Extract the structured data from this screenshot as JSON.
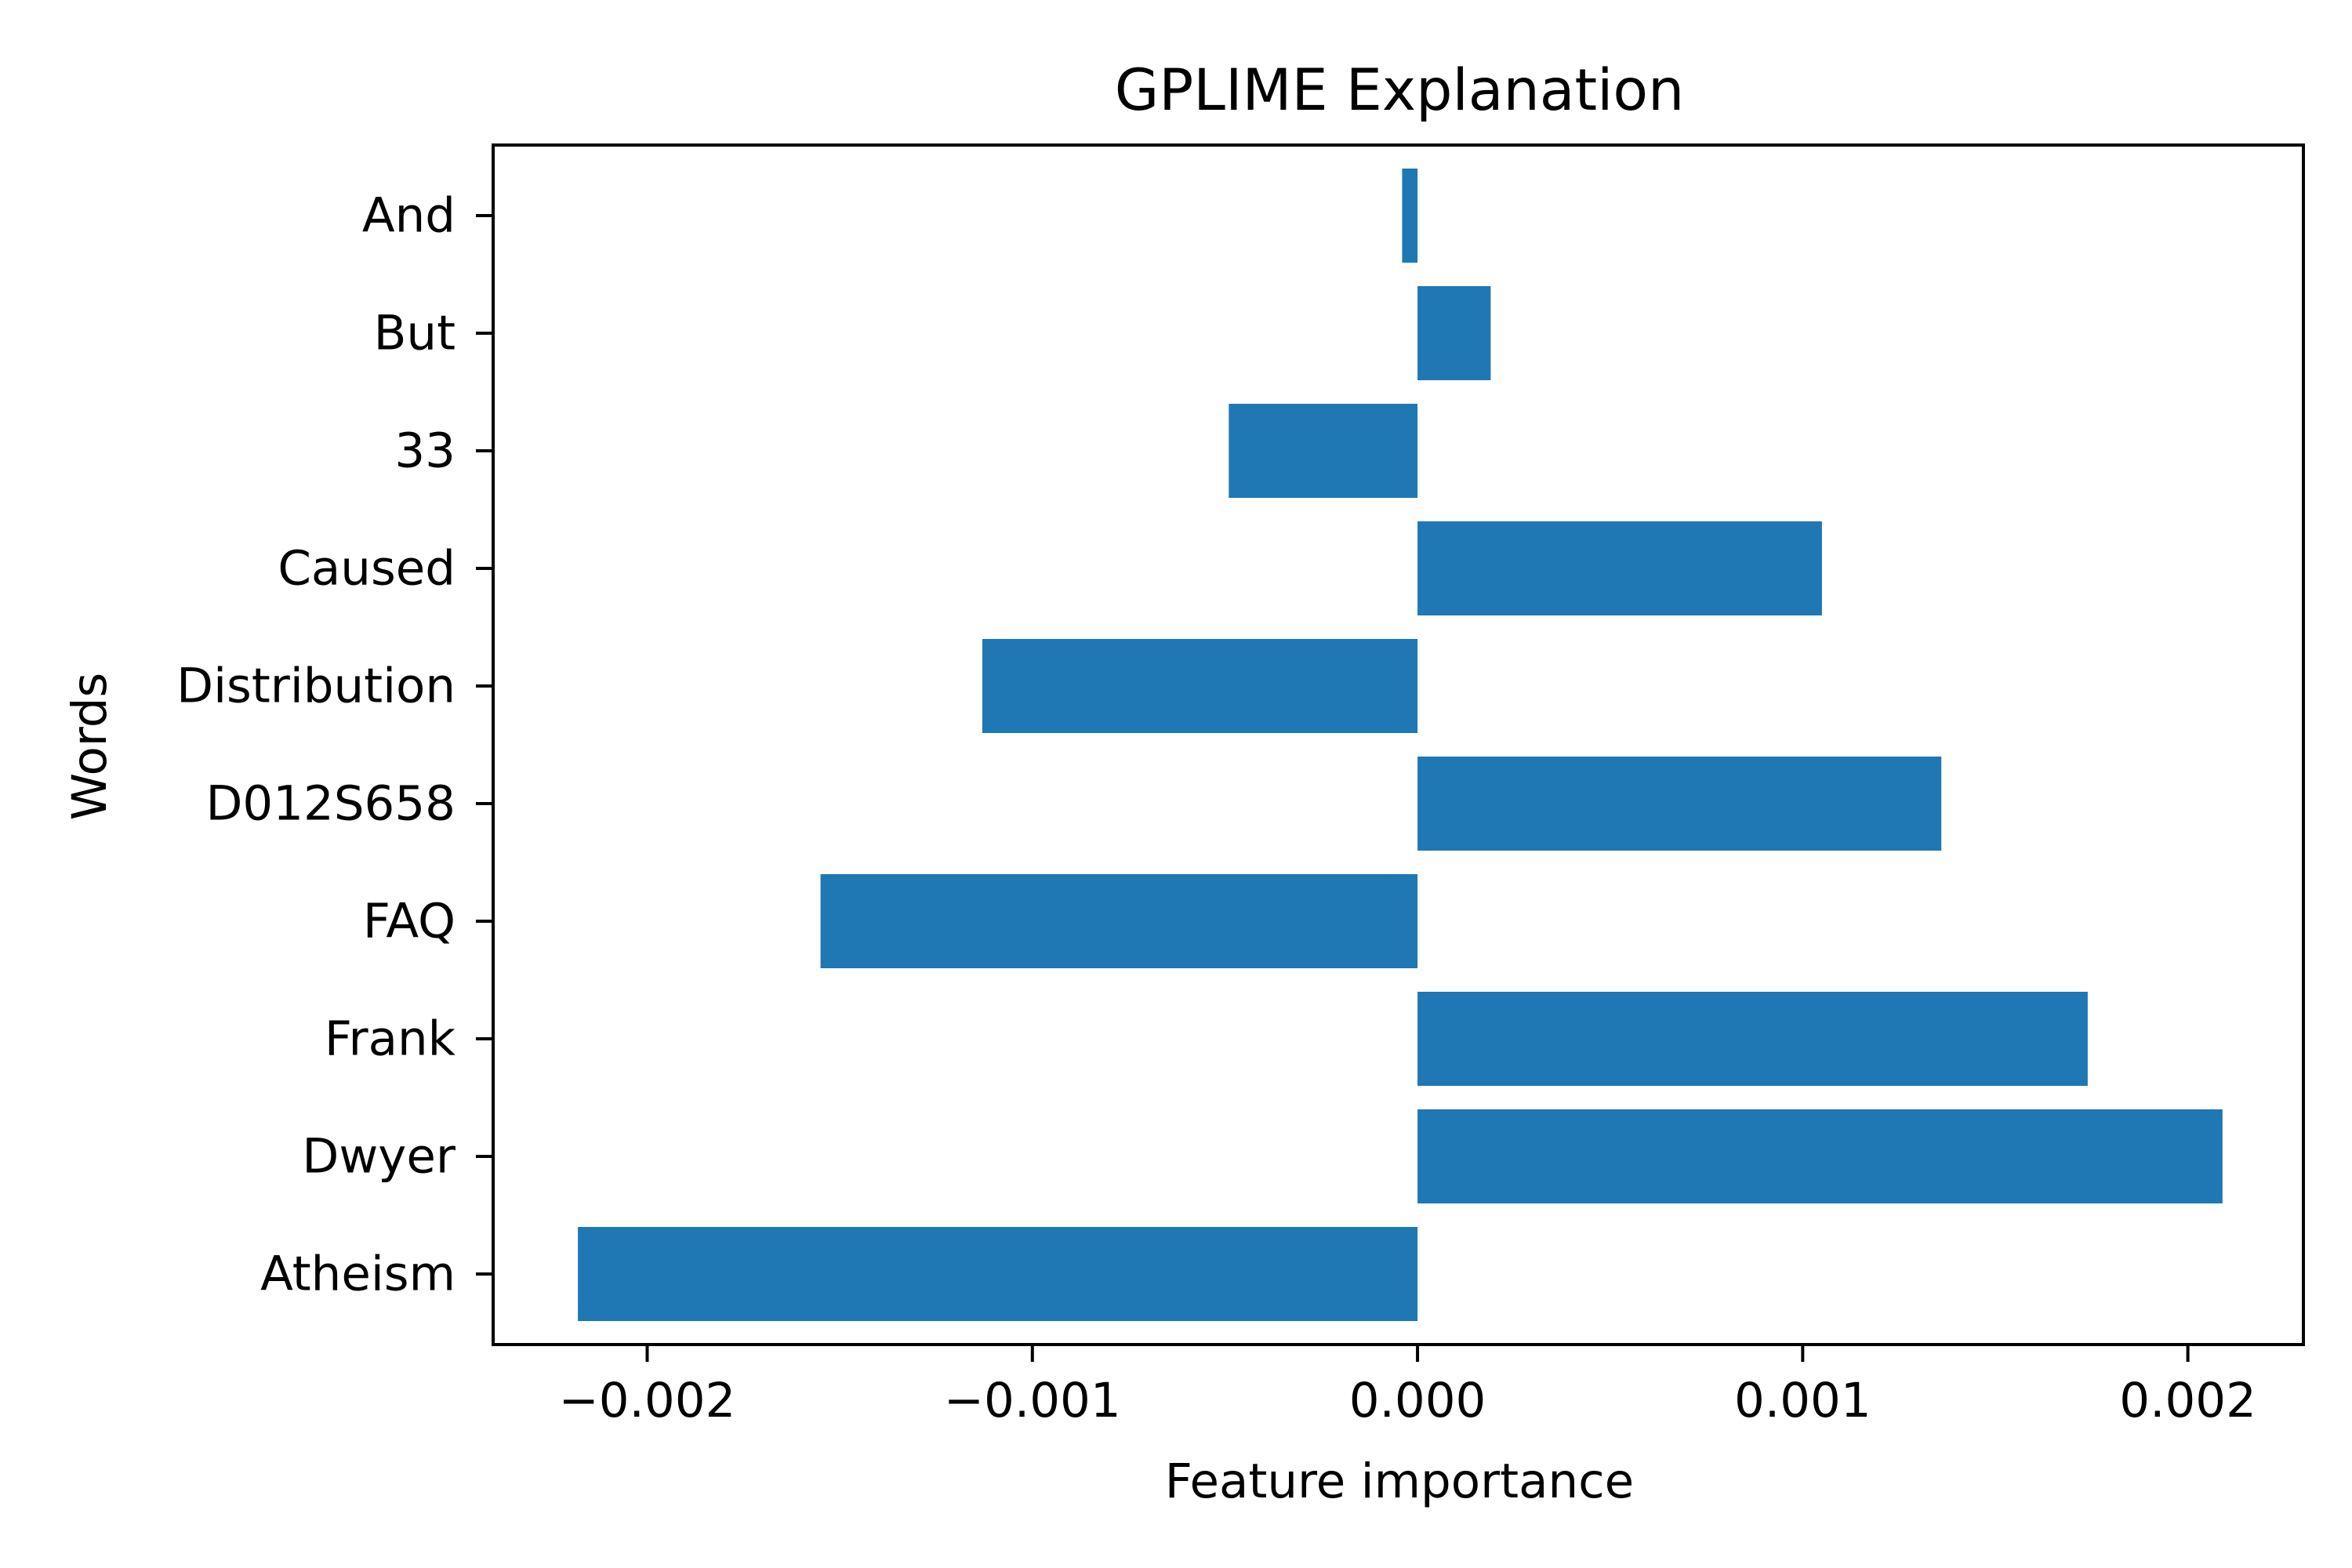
{
  "chart_data": {
    "type": "bar",
    "orientation": "horizontal",
    "title": "GPLIME Explanation",
    "xlabel": "Feature importance",
    "ylabel": "Words",
    "xlim": [
      -0.0024,
      0.0023
    ],
    "grid": false,
    "bar_color": "#1f77b4",
    "categories": [
      "Atheism",
      "Dwyer",
      "Frank",
      "FAQ",
      "D012S658",
      "Distribution",
      "Caused",
      "33",
      "But",
      "And"
    ],
    "values": [
      -0.00218,
      0.00209,
      0.00174,
      -0.00155,
      0.00136,
      -0.00113,
      0.00105,
      -0.00049,
      0.00019,
      -4e-05
    ],
    "x_ticks": [
      -0.002,
      -0.001,
      0.0,
      0.001,
      0.002
    ],
    "x_tick_labels": [
      "−0.002",
      "−0.001",
      "0.000",
      "0.001",
      "0.002"
    ]
  }
}
